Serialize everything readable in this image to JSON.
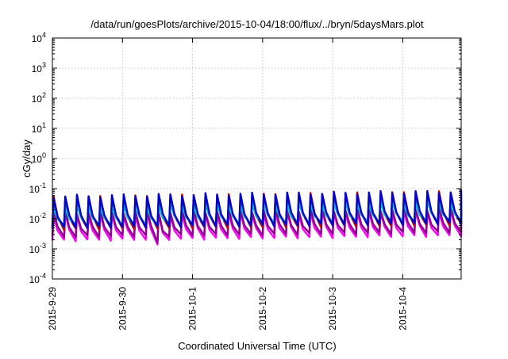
{
  "chart_data": {
    "type": "line",
    "title": "/data/run/goesPlots/archive/2015-10-04/18:00/flux/../bryn/5daysMars.plot",
    "xlabel": "Coordinated Universal Time (UTC)",
    "ylabel": "cGy/day",
    "yscale": "log",
    "ylim": [
      0.0001,
      10000
    ],
    "y_ticks": [
      {
        "value": 0.0001,
        "base": "10",
        "exp": "-4"
      },
      {
        "value": 0.001,
        "base": "10",
        "exp": "-3"
      },
      {
        "value": 0.01,
        "base": "10",
        "exp": "-2"
      },
      {
        "value": 0.1,
        "base": "10",
        "exp": "-1"
      },
      {
        "value": 1,
        "base": "10",
        "exp": "0"
      },
      {
        "value": 10,
        "base": "10",
        "exp": "1"
      },
      {
        "value": 100,
        "base": "10",
        "exp": "2"
      },
      {
        "value": 1000,
        "base": "10",
        "exp": "3"
      },
      {
        "value": 10000,
        "base": "10",
        "exp": "4"
      }
    ],
    "xlim": [
      "2015-09-29 00:00",
      "2015-10-04 20:00"
    ],
    "x_tick_labels": [
      "2015-9-29",
      "2015-9-30",
      "2015-10-1",
      "2015-10-2",
      "2015-10-3",
      "2015-10-4"
    ],
    "grid": true,
    "legend": "none",
    "sawtooth_period_hours": 4,
    "series": [
      {
        "color": "#ff00ff",
        "peaks": [
          0.013,
          0.018
        ],
        "troughs": [
          0.0019,
          0.0028
        ]
      },
      {
        "color": "#8b008b",
        "peaks": [
          0.016,
          0.022
        ],
        "troughs": [
          0.0025,
          0.0036
        ]
      },
      {
        "color": "#cc0000",
        "peaks": [
          0.05,
          0.075
        ],
        "troughs": [
          0.0045,
          0.0065
        ]
      },
      {
        "color": "#008b8b",
        "peaks": [
          0.03,
          0.045
        ],
        "troughs": [
          0.0055,
          0.008
        ]
      },
      {
        "color": "#00bfbf",
        "peaks": [
          0.024,
          0.035
        ],
        "troughs": [
          0.006,
          0.0085
        ]
      },
      {
        "color": "#0000cd",
        "peaks": [
          0.055,
          0.08
        ],
        "troughs": [
          0.005,
          0.007
        ]
      }
    ],
    "notable_dips": [
      {
        "x": "2015-09-30 16:00",
        "y": 0.0014
      }
    ]
  }
}
